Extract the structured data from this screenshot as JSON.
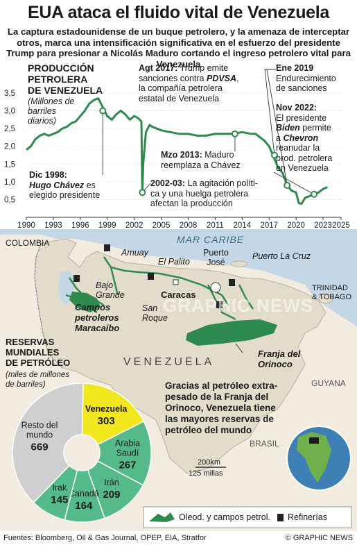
{
  "title": "EUA ataca el fluido vital de Venezuela",
  "subtitle": "La captura estadounidense de un buque petrolero, y la amenaza de interceptar otros, marca una intensificación significativa en el esfuerzo del presidente Trump para presionar a Nicolás Maduro cortando el ingreso petrolero vital para Venezuela",
  "chart_heading": {
    "line1": "PRODUCCIÓN",
    "line2": "PETROLERA",
    "line3": "DE VENEZUELA",
    "unit1": "(Millones de",
    "unit2": "barriles",
    "unit3": "diarios)"
  },
  "chart_data": {
    "type": "line",
    "ylim": [
      0,
      3.5
    ],
    "xlim": [
      1990,
      2025
    ],
    "y_ticks": [
      "0,5",
      "1,0",
      "1,5",
      "2,0",
      "2,5",
      "3,0",
      "3,5"
    ],
    "x_ticks": [
      "1990",
      "1993",
      "1996",
      "1999",
      "2002",
      "2005",
      "2008",
      "2011",
      "2014",
      "2017",
      "2020",
      "2023",
      "2025"
    ],
    "x": [
      1990,
      1990.5,
      1991,
      1991.5,
      1992,
      1992.5,
      1993,
      1993.5,
      1994,
      1994.5,
      1995,
      1995.5,
      1996,
      1996.5,
      1997,
      1997.5,
      1998,
      1998.5,
      1999,
      1999.5,
      2000,
      2000.5,
      2001,
      2001.5,
      2002,
      2002.4,
      2002.8,
      2002.9,
      2003,
      2003.3,
      2003.7,
      2004,
      2005,
      2006,
      2007,
      2008,
      2009,
      2010,
      2011,
      2012,
      2013,
      2014,
      2015,
      2015.5,
      2016,
      2016.5,
      2017,
      2017.5,
      2018,
      2018.5,
      2019,
      2019.5,
      2020,
      2020.3,
      2020.6,
      2021,
      2021.5,
      2022,
      2022.5,
      2023,
      2023.5
    ],
    "y": [
      1.9,
      2.0,
      2.2,
      2.3,
      2.35,
      2.3,
      2.35,
      2.4,
      2.5,
      2.55,
      2.65,
      2.7,
      2.85,
      3.0,
      3.2,
      3.3,
      3.35,
      3.1,
      2.85,
      2.75,
      2.9,
      3.0,
      2.9,
      2.75,
      2.85,
      2.8,
      2.7,
      0.7,
      1.5,
      2.4,
      2.6,
      2.55,
      2.45,
      2.4,
      2.35,
      2.35,
      2.3,
      2.3,
      2.35,
      2.35,
      2.35,
      2.4,
      2.35,
      2.35,
      2.25,
      2.15,
      2.0,
      1.7,
      1.4,
      1.25,
      0.9,
      0.75,
      0.7,
      0.4,
      0.38,
      0.55,
      0.6,
      0.65,
      0.7,
      0.8,
      0.85
    ],
    "markers": [
      {
        "x": 1998.5,
        "y": 3.0
      },
      {
        "x": 2002.9,
        "y": 0.7
      },
      {
        "x": 2013.2,
        "y": 2.35
      },
      {
        "x": 2017.6,
        "y": 1.75
      },
      {
        "x": 2019.0,
        "y": 0.9
      },
      {
        "x": 2022.0,
        "y": 0.65
      }
    ]
  },
  "annotations": {
    "dic1998_date": "Dic 1998:",
    "dic1998_name": "Hugo Chávez",
    "dic1998_rest1": " es",
    "dic1998_rest2": "elegido presidente",
    "agt2017_date": "Agt 2017:",
    "agt2017_l1": " Trump emite",
    "agt2017_l2a": "sanciones contra ",
    "agt2017_pdvsa": "PDVSA",
    "agt2017_l2b": ",",
    "agt2017_l3": "la compañía petrolera",
    "agt2017_l4": "estatal de Venezuela",
    "mzo2013_date": "Mzo 2013:",
    "mzo2013_l1": " Maduro",
    "mzo2013_l2": "reemplaza a Chávez",
    "y0203_date": "2002-03:",
    "y0203_l1": " La agitación políti-",
    "y0203_l2": "ca y una huelga petrolera",
    "y0203_l3": "afectan la producción",
    "ene2019_date": "Ene 2019",
    "ene2019_l1": "Endurecimiento",
    "ene2019_l2": "de sanciones",
    "nov2022_date": "Nov 2022:",
    "nov2022_l1": "El presidente",
    "nov2022_biden": "Biden",
    "nov2022_l2": " permite",
    "nov2022_a": "a ",
    "nov2022_chevron": "Chevron",
    "nov2022_l4": "reanudar la",
    "nov2022_l5": "prod. petrolera",
    "nov2022_l6": "en Venezuela"
  },
  "map": {
    "colombia": "COLOMBIA",
    "mar_caribe": "MAR CARIBE",
    "amuay": "Amuay",
    "el_palito": "El Palito",
    "puerto_jose_1": "Puerto",
    "puerto_jose_2": "José",
    "puerto_la_cruz": "Puerto La Cruz",
    "bajo_grande_1": "Bajo",
    "bajo_grande_2": "Grande",
    "caracas": "Caracas",
    "san_roque_1": "San",
    "san_roque_2": "Roque",
    "trinidad_1": "TRINIDAD",
    "trinidad_2": "& TOBAGO",
    "campos_1": "Campos",
    "campos_2": "petroleros",
    "campos_3": "Maracaibo",
    "franja_1": "Franja del",
    "franja_2": "Orinoco",
    "venezuela": "VENEZUELA",
    "guyana": "GUYANA",
    "brasil": "BRASIL",
    "scale_km": "200km",
    "scale_mi": "125 millas",
    "watermark": "GRAPHIC NEWS",
    "orinoco_note_1": "Gracias al petróleo extra-",
    "orinoco_note_2": "pesado de la Franja del",
    "orinoco_note_3": "Orinoco, Venezuela tiene",
    "orinoco_note_4": "las mayores reservas de",
    "orinoco_note_5": "petróleo del mundo",
    "legend_fields": "Oleod. y campos petrol.",
    "legend_refineries": "Refinerías"
  },
  "reserves": {
    "heading1": "RESERVAS",
    "heading2": "MUNDIALES",
    "heading3": "DE PETRÓLEO",
    "unit1": "(miles de millones",
    "unit2": "de barriles)",
    "slices": [
      {
        "name": "Venezuela",
        "value": 303,
        "value_label": "303",
        "color": "#f2e61c"
      },
      {
        "name": "Arabia Saudí",
        "value": 267,
        "value_label": "267",
        "color": "#55ba8a"
      },
      {
        "name": "Irán",
        "value": 209,
        "value_label": "209",
        "color": "#55ba8a"
      },
      {
        "name": "Canadá",
        "value": 164,
        "value_label": "164",
        "color": "#55ba8a"
      },
      {
        "name": "Irak",
        "value": 145,
        "value_label": "145",
        "color": "#55ba8a"
      },
      {
        "name": "Resto del mundo",
        "value": 669,
        "value_label": "669",
        "color": "#cfcfcf"
      }
    ]
  },
  "footer": {
    "sources": "Fuentes: Bloomberg, Oil & Gas Journal, OPEP, EIA, Stratfor",
    "copyright": "© GRAPHIC NEWS"
  },
  "colors": {
    "line": "#2e8a4c",
    "field": "#2f8a4f",
    "grid": "#d0d0d0",
    "land": "#f1ecdf",
    "sea": "#c3d7e6",
    "venezuela_land": "#e3dccb"
  }
}
